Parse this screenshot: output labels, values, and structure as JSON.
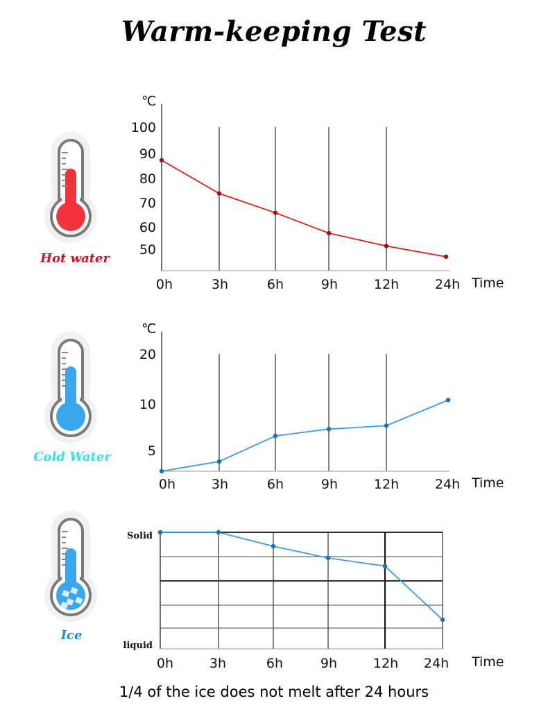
{
  "page_title": "Warm-keeping Test",
  "caption": "1/4 of the ice does not melt after 24 hours",
  "thermometers": [
    {
      "label": "Hot water",
      "label_color": "#d0102a",
      "fill_color": "#f2333c",
      "icon": "hot-thermometer-icon"
    },
    {
      "label": "Cold Water",
      "label_color": "#33e0f0",
      "fill_color": "#3aa6ee",
      "icon": "cold-thermometer-icon"
    },
    {
      "label": "Ice",
      "label_color": "#1f8fd0",
      "fill_color": "#3aa6ee",
      "icon": "ice-thermometer-icon"
    }
  ],
  "chart_data": [
    {
      "type": "line",
      "ylabel": "℃",
      "xlabel": "Time",
      "categories": [
        "0h",
        "3h",
        "6h",
        "9h",
        "12h",
        "24h"
      ],
      "y_ticks": [
        100,
        90,
        80,
        70,
        60,
        50
      ],
      "ylim": [
        41,
        108
      ],
      "grid": true,
      "color": "#dc1e1e",
      "series": [
        {
          "values": [
            92.5,
            77,
            68,
            58.5,
            52.5,
            47.5
          ]
        }
      ]
    },
    {
      "type": "line",
      "ylabel": "℃",
      "xlabel": "Time",
      "categories": [
        "0h",
        "3h",
        "6h",
        "9h",
        "12h",
        "24h"
      ],
      "y_ticks": [
        20,
        10,
        5
      ],
      "ylim": [
        2.9,
        23.5
      ],
      "grid": true,
      "color": "#3b9be0",
      "series": [
        {
          "values": [
            2.9,
            4.6,
            9.1,
            10.3,
            10.9,
            15.4
          ]
        }
      ]
    },
    {
      "type": "line",
      "ylabel": "",
      "xlabel": "Time",
      "categories": [
        "0h",
        "3h",
        "6h",
        "9h",
        "12h",
        "24h"
      ],
      "y_ticks_text": [
        "Solid",
        "liquid"
      ],
      "ylim": [
        0,
        1
      ],
      "grid": true,
      "color": "#3b9be0",
      "series": [
        {
          "values": [
            1.0,
            1.0,
            0.88,
            0.78,
            0.71,
            0.25
          ]
        }
      ]
    }
  ]
}
